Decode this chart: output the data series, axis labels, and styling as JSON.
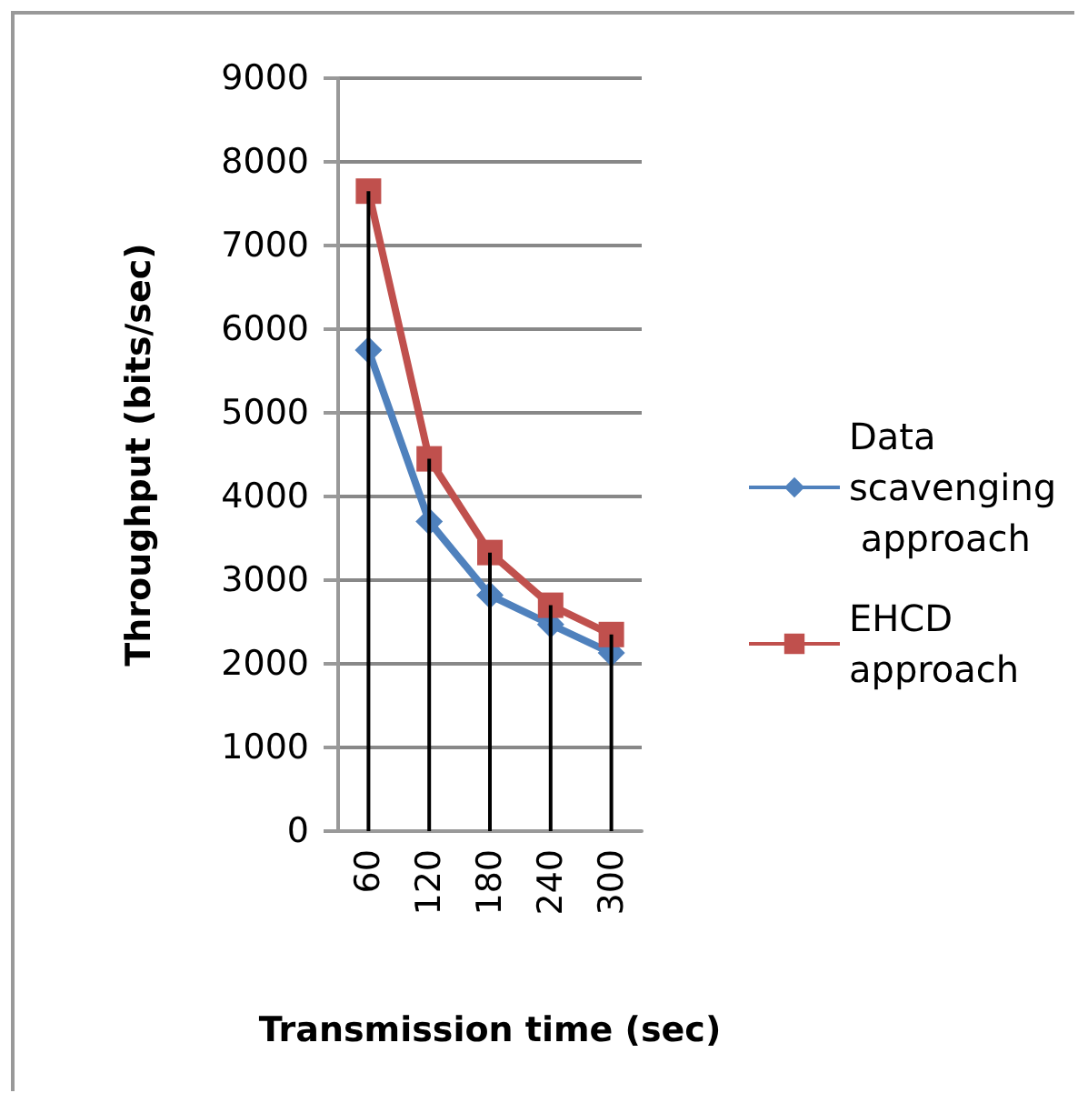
{
  "chart_data": {
    "type": "line",
    "xlabel": "Transmission time (sec)",
    "ylabel": "Throughput (bits/sec)",
    "categories": [
      "60",
      "120",
      "180",
      "240",
      "300"
    ],
    "series": [
      {
        "name": "Data scavenging approach",
        "color": "#4f81bd",
        "marker": "diamond",
        "values": [
          5750,
          3700,
          2820,
          2470,
          2130
        ]
      },
      {
        "name": "EHCD approach",
        "color": "#c0504d",
        "marker": "square",
        "values": [
          7650,
          4450,
          3330,
          2700,
          2350
        ],
        "errors": [
          [
            0,
            7650
          ],
          [
            0,
            4450
          ],
          [
            0,
            3330
          ],
          [
            0,
            2700
          ],
          [
            0,
            2350
          ]
        ]
      }
    ],
    "ylim": [
      0,
      9000
    ],
    "yticks": [
      0,
      1000,
      2000,
      3000,
      4000,
      5000,
      6000,
      7000,
      8000,
      9000
    ],
    "grid": "y",
    "legend": "right"
  }
}
